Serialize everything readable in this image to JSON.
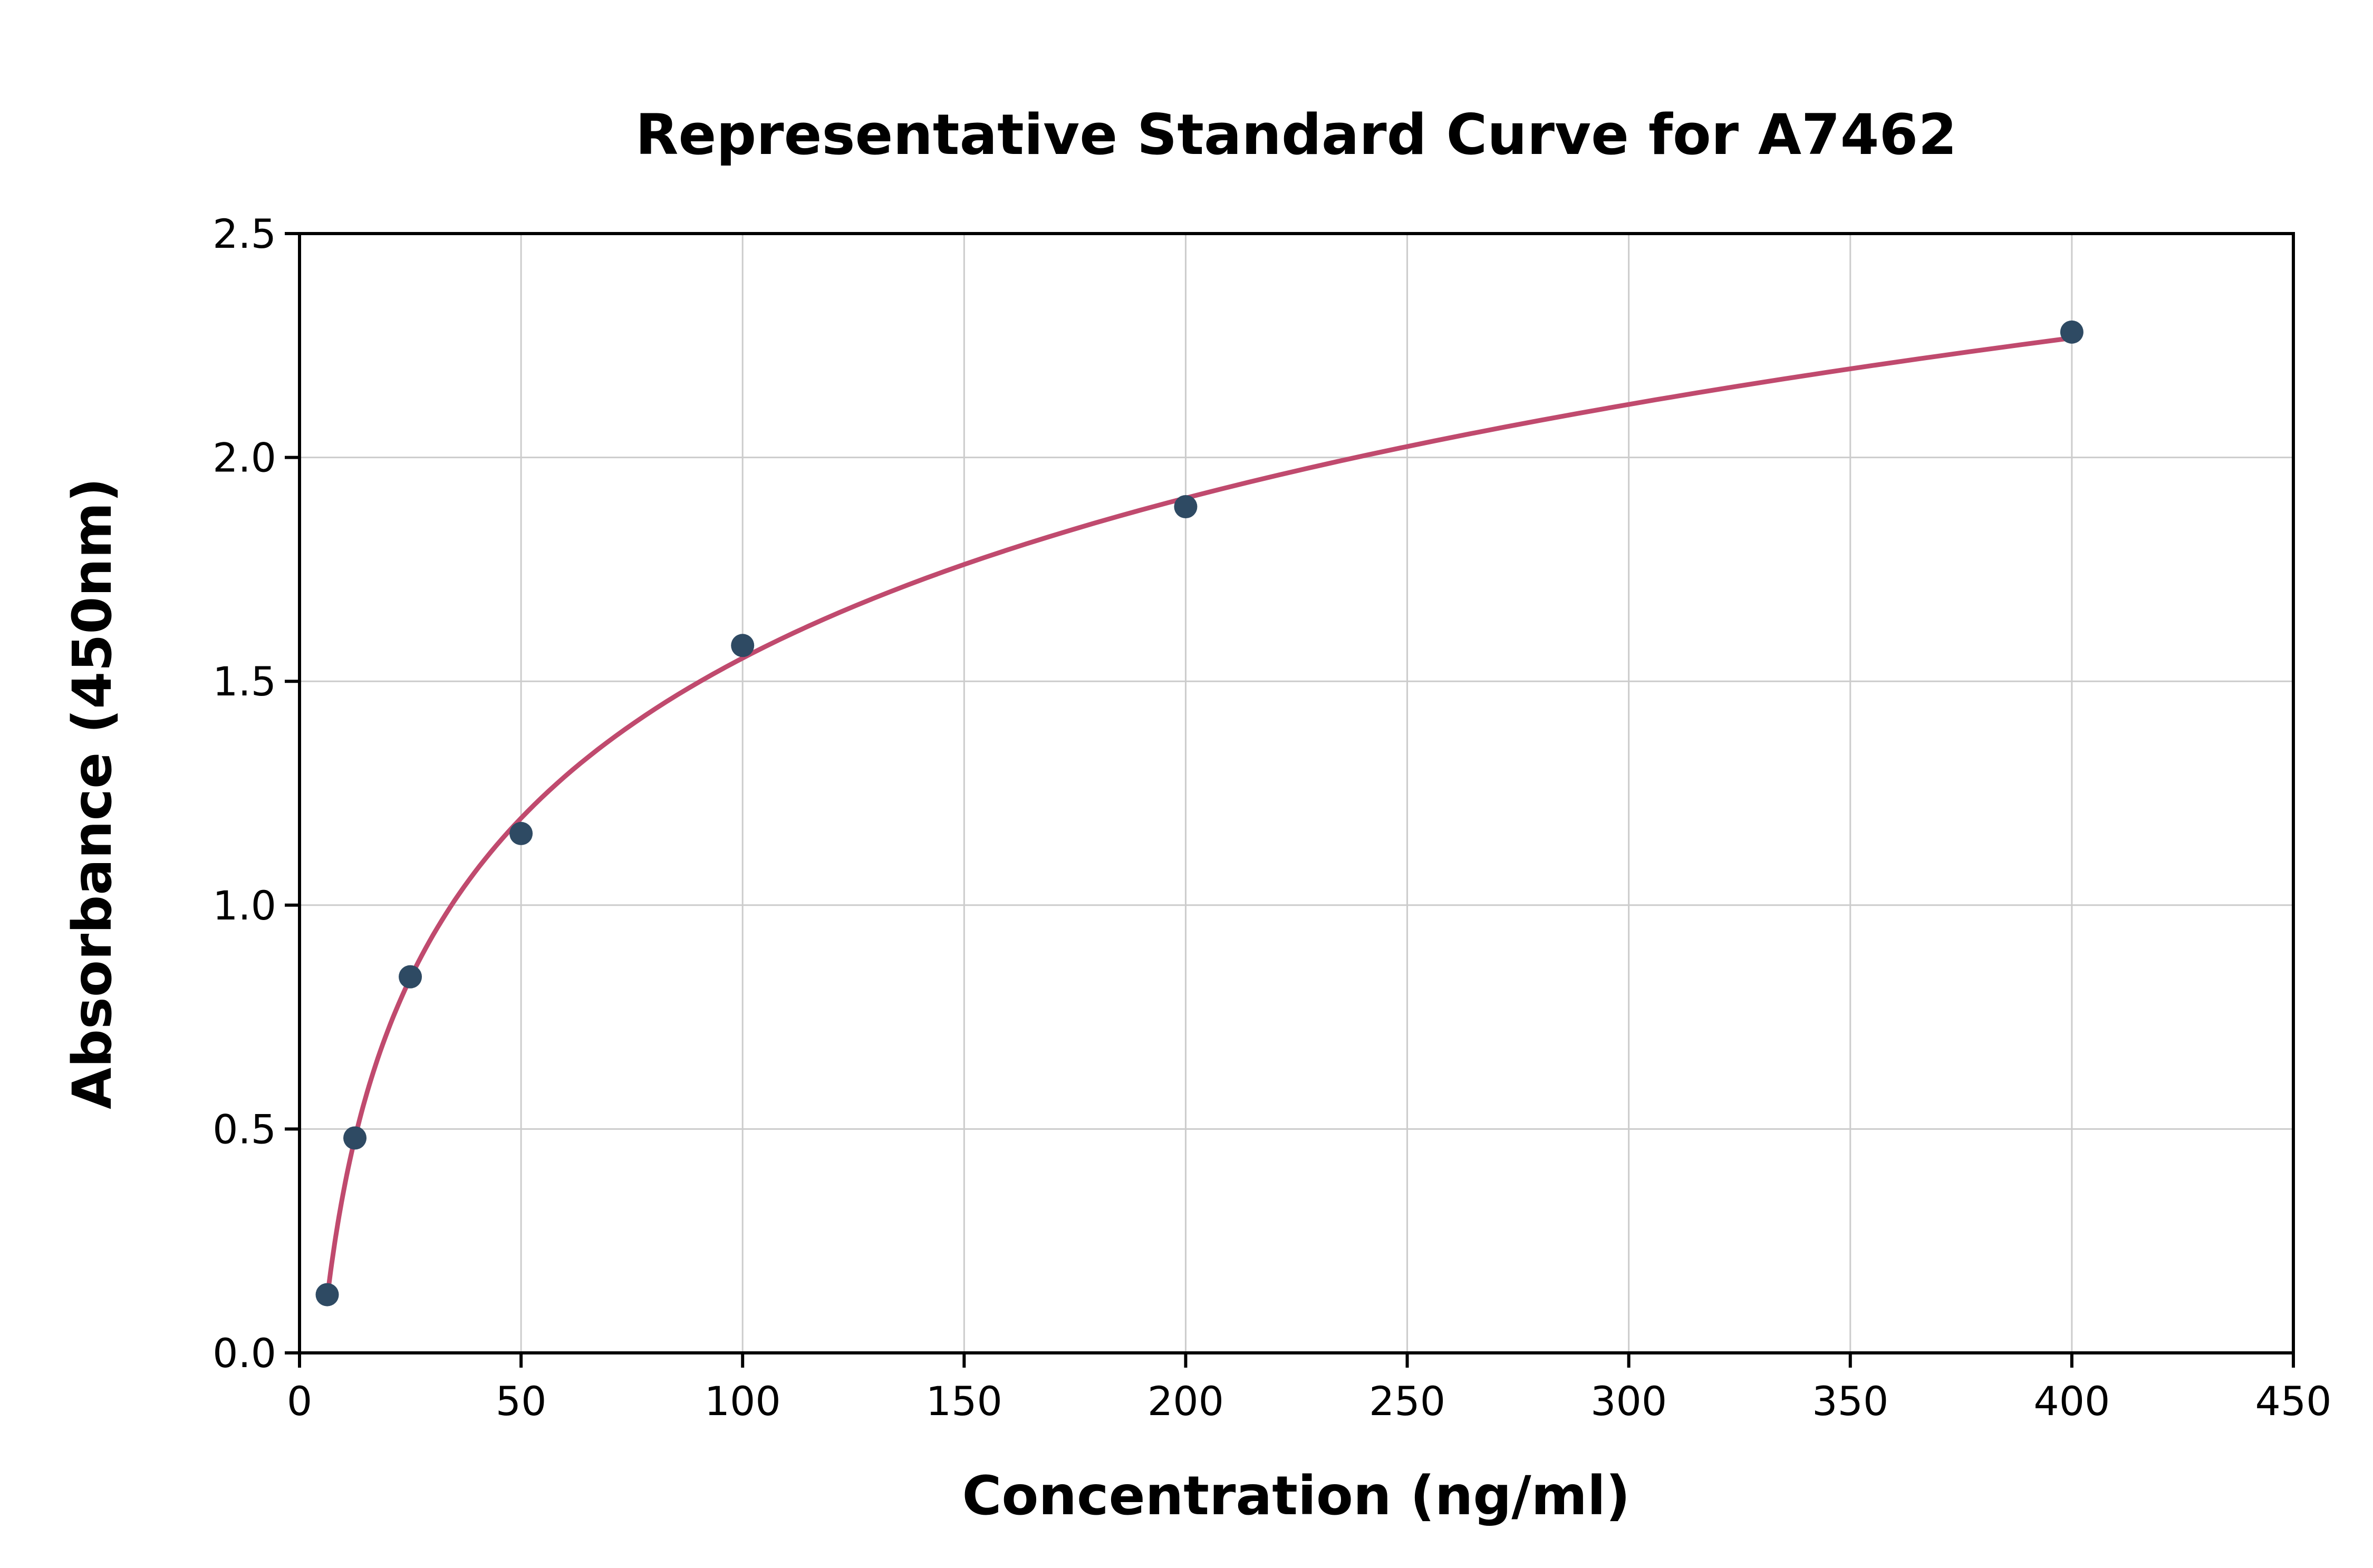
{
  "figure": {
    "background": "#ffffff"
  },
  "chart_data": {
    "type": "scatter",
    "title": "Representative Standard Curve for A7462",
    "xlabel": "Concentration (ng/ml)",
    "ylabel": "Absorbance (450nm)",
    "points": {
      "x": [
        6.25,
        12.5,
        25,
        50,
        100,
        200,
        400
      ],
      "y": [
        0.13,
        0.48,
        0.84,
        1.16,
        1.58,
        1.89,
        2.28
      ]
    },
    "fit": "logarithmic",
    "xlim": [
      0,
      450
    ],
    "ylim": [
      0.0,
      2.5
    ],
    "xticks": [
      0,
      50,
      100,
      150,
      200,
      250,
      300,
      350,
      400,
      450
    ],
    "yticks": [
      0.0,
      0.5,
      1.0,
      1.5,
      2.0,
      2.5
    ],
    "grid": true,
    "legend": "none",
    "colors": {
      "point": "#2e4a63",
      "curve": "#c04a6e",
      "grid": "#cccccc",
      "axis": "#000000"
    }
  }
}
